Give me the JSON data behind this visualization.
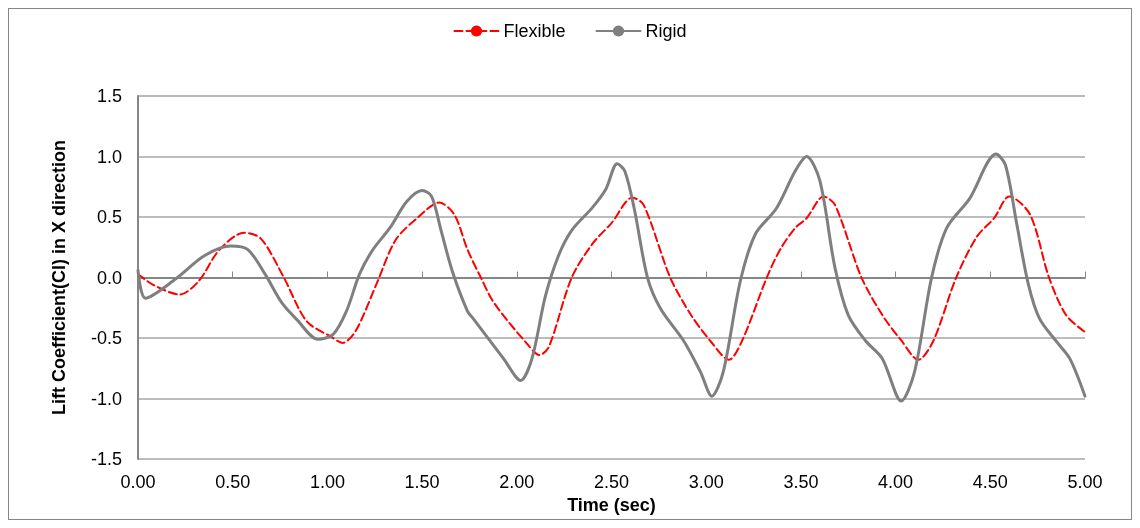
{
  "chart_data": {
    "type": "line",
    "xlabel": "Time (sec)",
    "ylabel": "Lift Coefficient(Cl) in X direction",
    "legend": "top",
    "grid": "y",
    "xlim": [
      0,
      5
    ],
    "xticks": [
      {
        "value": 0,
        "label": "0.00"
      },
      {
        "value": 0.5,
        "label": "0.50"
      },
      {
        "value": 1,
        "label": "1.00"
      },
      {
        "value": 1.5,
        "label": "1.50"
      },
      {
        "value": 2,
        "label": "2.00"
      },
      {
        "value": 2.5,
        "label": "2.50"
      },
      {
        "value": 3,
        "label": "3.00"
      },
      {
        "value": 3.5,
        "label": "3.50"
      },
      {
        "value": 4,
        "label": "4.00"
      },
      {
        "value": 4.5,
        "label": "4.50"
      },
      {
        "value": 5,
        "label": "5.00"
      }
    ],
    "ylim": [
      -1.5,
      1.5
    ],
    "yticks": [
      {
        "value": -1.5,
        "label": "-1.5"
      },
      {
        "value": -1,
        "label": "-1.0"
      },
      {
        "value": -0.5,
        "label": "-0.5"
      },
      {
        "value": 0,
        "label": "0.0"
      },
      {
        "value": 0.5,
        "label": "0.5"
      },
      {
        "value": 1,
        "label": "1.0"
      },
      {
        "value": 1.5,
        "label": "1.5"
      }
    ],
    "series": [
      {
        "name": "Flexible",
        "color": "#ff0000",
        "line_style": "dashed",
        "x": [
          0,
          0.08,
          0.22,
          0.32,
          0.43,
          0.56,
          0.65,
          0.77,
          0.89,
          1.02,
          1.08,
          1.15,
          1.26,
          1.36,
          1.48,
          1.59,
          1.67,
          1.74,
          1.81,
          1.88,
          2.05,
          2.12,
          2.17,
          2.29,
          2.4,
          2.5,
          2.61,
          2.67,
          2.81,
          2.92,
          3.02,
          3.12,
          3.19,
          3.32,
          3.39,
          3.47,
          3.53,
          3.62,
          3.68,
          3.82,
          3.93,
          4.03,
          4.12,
          4.2,
          4.32,
          4.43,
          4.52,
          4.6,
          4.71,
          4.81,
          4.9,
          5
        ],
        "values": [
          0.03,
          -0.06,
          -0.14,
          -0.03,
          0.23,
          0.37,
          0.32,
          0,
          -0.36,
          -0.49,
          -0.54,
          -0.44,
          -0.05,
          0.31,
          0.5,
          0.62,
          0.52,
          0.23,
          0,
          -0.21,
          -0.54,
          -0.64,
          -0.57,
          0,
          0.28,
          0.45,
          0.66,
          0.6,
          0,
          -0.31,
          -0.52,
          -0.68,
          -0.52,
          0,
          0.23,
          0.41,
          0.49,
          0.67,
          0.6,
          0,
          -0.31,
          -0.52,
          -0.68,
          -0.52,
          0,
          0.34,
          0.49,
          0.67,
          0.52,
          0,
          -0.31,
          -0.45
        ]
      },
      {
        "name": "Rigid",
        "color": "#7f7f7f",
        "line_style": "solid",
        "x": [
          0,
          0.04,
          0.2,
          0.35,
          0.49,
          0.58,
          0.67,
          0.76,
          0.84,
          0.95,
          1.03,
          1.1,
          1.17,
          1.24,
          1.33,
          1.42,
          1.5,
          1.55,
          1.6,
          1.66,
          1.74,
          1.77,
          1.93,
          2.02,
          2.08,
          2.15,
          2.22,
          2.29,
          2.4,
          2.47,
          2.53,
          2.57,
          2.62,
          2.69,
          2.76,
          2.88,
          2.97,
          3.03,
          3.09,
          3.18,
          3.26,
          3.37,
          3.47,
          3.53,
          3.6,
          3.68,
          3.75,
          3.84,
          3.93,
          4.03,
          4.1,
          4.19,
          4.27,
          4.39,
          4.53,
          4.58,
          4.64,
          4.7,
          4.76,
          4.85,
          4.92,
          5
        ],
        "values": [
          0.06,
          -0.17,
          -0.01,
          0.18,
          0.26,
          0.23,
          0.03,
          -0.21,
          -0.35,
          -0.51,
          -0.47,
          -0.28,
          0.03,
          0.23,
          0.41,
          0.63,
          0.72,
          0.67,
          0.39,
          0.05,
          -0.28,
          -0.34,
          -0.67,
          -0.85,
          -0.67,
          -0.16,
          0.18,
          0.39,
          0.58,
          0.73,
          0.94,
          0.88,
          0.57,
          0,
          -0.26,
          -0.52,
          -0.78,
          -0.98,
          -0.78,
          -0.03,
          0.36,
          0.57,
          0.88,
          1.0,
          0.8,
          0.08,
          -0.31,
          -0.52,
          -0.67,
          -1.02,
          -0.78,
          0,
          0.41,
          0.65,
          1.02,
          0.93,
          0.44,
          -0.05,
          -0.34,
          -0.53,
          -0.67,
          -0.98
        ]
      }
    ]
  }
}
